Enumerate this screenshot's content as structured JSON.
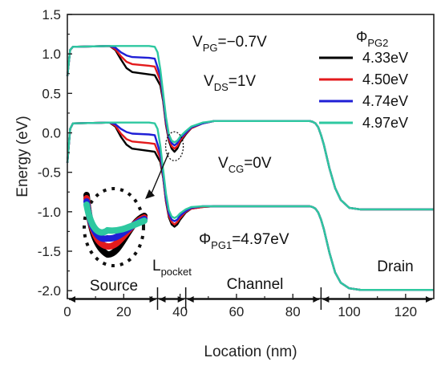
{
  "chart_data": {
    "type": "line",
    "xlabel": "Location (nm)",
    "ylabel": "Energy (eV)",
    "xlim": [
      0,
      130
    ],
    "ylim": [
      -2.1,
      1.5
    ],
    "xticks": [
      0,
      20,
      40,
      60,
      80,
      100,
      120
    ],
    "yticks": [
      "1.5",
      "1.0",
      "0.5",
      "0.0",
      "-0.5",
      "-1.0",
      "-1.5",
      "-2.0"
    ],
    "grid": false,
    "legend": {
      "title": "ΦPG2",
      "placement": "top-right"
    },
    "annotations": {
      "vpg": "VPG=−0.7V",
      "vds": "VDS=1V",
      "vcg": "VCG=0V",
      "phi_pg1": "ΦPG1=4.97eV"
    },
    "regions": [
      {
        "label": "Source",
        "x_range": [
          0,
          32
        ]
      },
      {
        "label": "Lpocket",
        "x_range": [
          32,
          42
        ]
      },
      {
        "label": "Channel",
        "x_range": [
          42,
          90
        ]
      },
      {
        "label": "Drain",
        "x_range": [
          90,
          130
        ]
      }
    ],
    "series": [
      {
        "name": "4.33eV",
        "color": "#000000",
        "conduction_band": [
          [
            0,
            0.72
          ],
          [
            1,
            1.05
          ],
          [
            2,
            1.09
          ],
          [
            15,
            1.1
          ],
          [
            17,
            1.05
          ],
          [
            19,
            0.93
          ],
          [
            21,
            0.82
          ],
          [
            23,
            0.77
          ],
          [
            29,
            0.74
          ],
          [
            31,
            0.73
          ],
          [
            33,
            0.6
          ],
          [
            34,
            0.4
          ],
          [
            35,
            0.1
          ],
          [
            36,
            -0.1
          ],
          [
            37,
            -0.2
          ],
          [
            38,
            -0.24
          ],
          [
            39,
            -0.2
          ],
          [
            40,
            -0.12
          ],
          [
            42,
            -0.02
          ],
          [
            44,
            0.06
          ],
          [
            48,
            0.12
          ],
          [
            52,
            0.15
          ],
          [
            80,
            0.15
          ],
          [
            86,
            0.15
          ],
          [
            87,
            0.14
          ],
          [
            88,
            0.12
          ],
          [
            89,
            0.07
          ],
          [
            90,
            -0.03
          ],
          [
            91,
            -0.15
          ],
          [
            93,
            -0.45
          ],
          [
            95,
            -0.7
          ],
          [
            97,
            -0.85
          ],
          [
            100,
            -0.95
          ],
          [
            104,
            -0.97
          ],
          [
            130,
            -0.97
          ]
        ],
        "valence_band": [
          [
            0,
            -0.38
          ],
          [
            1,
            0.05
          ],
          [
            2,
            0.12
          ],
          [
            15,
            0.13
          ],
          [
            17,
            0.08
          ],
          [
            19,
            -0.05
          ],
          [
            21,
            -0.15
          ],
          [
            23,
            -0.2
          ],
          [
            29,
            -0.23
          ],
          [
            31,
            -0.24
          ],
          [
            33,
            -0.37
          ],
          [
            34,
            -0.57
          ],
          [
            35,
            -0.87
          ],
          [
            36,
            -1.07
          ],
          [
            37,
            -1.16
          ],
          [
            38,
            -1.19
          ],
          [
            39,
            -1.16
          ],
          [
            40,
            -1.1
          ],
          [
            42,
            -1.01
          ],
          [
            44,
            -0.96
          ],
          [
            48,
            -0.94
          ],
          [
            52,
            -0.93
          ],
          [
            80,
            -0.93
          ],
          [
            86,
            -0.93
          ],
          [
            87,
            -0.94
          ],
          [
            88,
            -0.96
          ],
          [
            89,
            -1.01
          ],
          [
            90,
            -1.1
          ],
          [
            91,
            -1.22
          ],
          [
            93,
            -1.52
          ],
          [
            95,
            -1.77
          ],
          [
            97,
            -1.9
          ],
          [
            100,
            -1.97
          ],
          [
            104,
            -1.99
          ],
          [
            130,
            -1.99
          ]
        ]
      },
      {
        "name": "4.50eV",
        "color": "#e31a1c",
        "conduction_band": [
          [
            0,
            0.72
          ],
          [
            1,
            1.05
          ],
          [
            2,
            1.09
          ],
          [
            15,
            1.1
          ],
          [
            17,
            1.06
          ],
          [
            19,
            0.97
          ],
          [
            21,
            0.9
          ],
          [
            23,
            0.87
          ],
          [
            29,
            0.85
          ],
          [
            31,
            0.84
          ],
          [
            33,
            0.66
          ],
          [
            34,
            0.42
          ],
          [
            35,
            0.12
          ],
          [
            36,
            -0.08
          ],
          [
            37,
            -0.17
          ],
          [
            38,
            -0.2
          ],
          [
            39,
            -0.17
          ],
          [
            40,
            -0.1
          ],
          [
            42,
            -0.01
          ],
          [
            44,
            0.06
          ],
          [
            48,
            0.12
          ],
          [
            52,
            0.15
          ],
          [
            80,
            0.15
          ],
          [
            86,
            0.15
          ],
          [
            87,
            0.14
          ],
          [
            88,
            0.12
          ],
          [
            89,
            0.07
          ],
          [
            90,
            -0.03
          ],
          [
            91,
            -0.15
          ],
          [
            93,
            -0.45
          ],
          [
            95,
            -0.7
          ],
          [
            97,
            -0.85
          ],
          [
            100,
            -0.95
          ],
          [
            104,
            -0.97
          ],
          [
            130,
            -0.97
          ]
        ],
        "valence_band": [
          [
            0,
            -0.38
          ],
          [
            1,
            0.05
          ],
          [
            2,
            0.12
          ],
          [
            15,
            0.13
          ],
          [
            17,
            0.09
          ],
          [
            19,
            -0.01
          ],
          [
            21,
            -0.08
          ],
          [
            23,
            -0.11
          ],
          [
            29,
            -0.13
          ],
          [
            31,
            -0.14
          ],
          [
            33,
            -0.32
          ],
          [
            34,
            -0.56
          ],
          [
            35,
            -0.86
          ],
          [
            36,
            -1.05
          ],
          [
            37,
            -1.13
          ],
          [
            38,
            -1.16
          ],
          [
            39,
            -1.13
          ],
          [
            40,
            -1.08
          ],
          [
            42,
            -1.0
          ],
          [
            44,
            -0.96
          ],
          [
            48,
            -0.94
          ],
          [
            52,
            -0.93
          ],
          [
            80,
            -0.93
          ],
          [
            86,
            -0.93
          ],
          [
            87,
            -0.94
          ],
          [
            88,
            -0.96
          ],
          [
            89,
            -1.01
          ],
          [
            90,
            -1.1
          ],
          [
            91,
            -1.22
          ],
          [
            93,
            -1.52
          ],
          [
            95,
            -1.77
          ],
          [
            97,
            -1.9
          ],
          [
            100,
            -1.97
          ],
          [
            104,
            -1.99
          ],
          [
            130,
            -1.99
          ]
        ]
      },
      {
        "name": "4.74eV",
        "color": "#1f1fd6",
        "conduction_band": [
          [
            0,
            0.72
          ],
          [
            1,
            1.05
          ],
          [
            2,
            1.09
          ],
          [
            15,
            1.1
          ],
          [
            17,
            1.08
          ],
          [
            19,
            1.02
          ],
          [
            21,
            0.98
          ],
          [
            23,
            0.96
          ],
          [
            29,
            0.95
          ],
          [
            31,
            0.94
          ],
          [
            33,
            0.72
          ],
          [
            34,
            0.45
          ],
          [
            35,
            0.15
          ],
          [
            36,
            -0.05
          ],
          [
            37,
            -0.13
          ],
          [
            38,
            -0.16
          ],
          [
            39,
            -0.13
          ],
          [
            40,
            -0.07
          ],
          [
            42,
            0.0
          ],
          [
            44,
            0.07
          ],
          [
            48,
            0.12
          ],
          [
            52,
            0.15
          ],
          [
            80,
            0.15
          ],
          [
            86,
            0.15
          ],
          [
            87,
            0.14
          ],
          [
            88,
            0.12
          ],
          [
            89,
            0.07
          ],
          [
            90,
            -0.03
          ],
          [
            91,
            -0.15
          ],
          [
            93,
            -0.45
          ],
          [
            95,
            -0.7
          ],
          [
            97,
            -0.85
          ],
          [
            100,
            -0.95
          ],
          [
            104,
            -0.97
          ],
          [
            130,
            -0.97
          ]
        ],
        "valence_band": [
          [
            0,
            -0.38
          ],
          [
            1,
            0.05
          ],
          [
            2,
            0.12
          ],
          [
            15,
            0.13
          ],
          [
            17,
            0.11
          ],
          [
            19,
            0.05
          ],
          [
            21,
            0.01
          ],
          [
            23,
            -0.01
          ],
          [
            29,
            -0.02
          ],
          [
            31,
            -0.03
          ],
          [
            33,
            -0.26
          ],
          [
            34,
            -0.53
          ],
          [
            35,
            -0.83
          ],
          [
            36,
            -1.02
          ],
          [
            37,
            -1.1
          ],
          [
            38,
            -1.12
          ],
          [
            39,
            -1.1
          ],
          [
            40,
            -1.05
          ],
          [
            42,
            -0.99
          ],
          [
            44,
            -0.95
          ],
          [
            48,
            -0.93
          ],
          [
            52,
            -0.93
          ],
          [
            80,
            -0.93
          ],
          [
            86,
            -0.93
          ],
          [
            87,
            -0.94
          ],
          [
            88,
            -0.96
          ],
          [
            89,
            -1.01
          ],
          [
            90,
            -1.1
          ],
          [
            91,
            -1.22
          ],
          [
            93,
            -1.52
          ],
          [
            95,
            -1.77
          ],
          [
            97,
            -1.9
          ],
          [
            100,
            -1.97
          ],
          [
            104,
            -1.99
          ],
          [
            130,
            -1.99
          ]
        ]
      },
      {
        "name": "4.97eV",
        "color": "#2ec8a0",
        "conduction_band": [
          [
            0,
            0.72
          ],
          [
            1,
            1.05
          ],
          [
            2,
            1.09
          ],
          [
            15,
            1.1
          ],
          [
            29,
            1.1
          ],
          [
            31,
            1.09
          ],
          [
            32,
            1.02
          ],
          [
            33,
            0.8
          ],
          [
            34,
            0.5
          ],
          [
            35,
            0.2
          ],
          [
            36,
            -0.02
          ],
          [
            37,
            -0.1
          ],
          [
            38,
            -0.12
          ],
          [
            39,
            -0.1
          ],
          [
            40,
            -0.05
          ],
          [
            42,
            0.02
          ],
          [
            44,
            0.08
          ],
          [
            48,
            0.13
          ],
          [
            52,
            0.15
          ],
          [
            80,
            0.15
          ],
          [
            86,
            0.15
          ],
          [
            87,
            0.14
          ],
          [
            88,
            0.12
          ],
          [
            89,
            0.07
          ],
          [
            90,
            -0.03
          ],
          [
            91,
            -0.15
          ],
          [
            93,
            -0.45
          ],
          [
            95,
            -0.7
          ],
          [
            97,
            -0.85
          ],
          [
            100,
            -0.95
          ],
          [
            104,
            -0.97
          ],
          [
            130,
            -0.97
          ]
        ],
        "valence_band": [
          [
            0,
            -0.38
          ],
          [
            1,
            0.05
          ],
          [
            2,
            0.12
          ],
          [
            15,
            0.13
          ],
          [
            29,
            0.13
          ],
          [
            31,
            0.12
          ],
          [
            32,
            0.05
          ],
          [
            33,
            -0.17
          ],
          [
            34,
            -0.47
          ],
          [
            35,
            -0.77
          ],
          [
            36,
            -0.98
          ],
          [
            37,
            -1.06
          ],
          [
            38,
            -1.08
          ],
          [
            39,
            -1.06
          ],
          [
            40,
            -1.02
          ],
          [
            42,
            -0.97
          ],
          [
            44,
            -0.94
          ],
          [
            48,
            -0.93
          ],
          [
            52,
            -0.93
          ],
          [
            80,
            -0.93
          ],
          [
            86,
            -0.93
          ],
          [
            87,
            -0.94
          ],
          [
            88,
            -0.96
          ],
          [
            89,
            -1.01
          ],
          [
            90,
            -1.1
          ],
          [
            91,
            -1.22
          ],
          [
            93,
            -1.52
          ],
          [
            95,
            -1.77
          ],
          [
            97,
            -1.9
          ],
          [
            100,
            -1.97
          ],
          [
            104,
            -1.99
          ],
          [
            130,
            -1.99
          ]
        ]
      }
    ]
  }
}
